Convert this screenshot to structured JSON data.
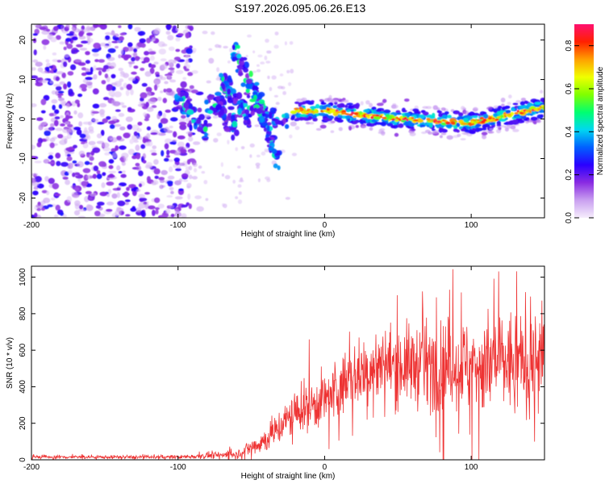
{
  "title": "S197.2026.095.06.26.E13",
  "chart_data": [
    {
      "type": "heatmap",
      "xlabel": "Height of straight line (km)",
      "ylabel": "Frequency (Hz)",
      "xlim": [
        -200,
        150
      ],
      "ylim": [
        -25,
        24
      ],
      "xticks": [
        -200,
        -100,
        0,
        100
      ],
      "xtick_labels": [
        "-200",
        "-100",
        "0",
        "100"
      ],
      "yticks": [
        -20,
        -10,
        0,
        10,
        20
      ],
      "ytick_labels": [
        "-20",
        "-10",
        "0",
        "10",
        "20"
      ],
      "colorbar": {
        "label": "Normalized spectral amplitude",
        "range": [
          0,
          0.9
        ],
        "ticks": [
          0,
          0.2,
          0.4,
          0.6,
          0.8
        ],
        "tick_labels": [
          "0.0",
          "0.2",
          "0.4",
          "0.6",
          "0.8"
        ],
        "colormap": [
          "#f6edfc",
          "#c9a0f0",
          "#8a2be2",
          "#2a00ff",
          "#0060ff",
          "#00d8f0",
          "#00ff70",
          "#80ff00",
          "#f0ff00",
          "#ffa000",
          "#ff2000",
          "#ff1070"
        ]
      },
      "regions": [
        {
          "desc": "noise",
          "x": [
            -200,
            -90
          ],
          "freq_range": [
            -25,
            24
          ],
          "amplitude": "low"
        },
        {
          "desc": "broadband transition",
          "x": [
            -100,
            -25
          ],
          "freq_range": [
            -12,
            15
          ],
          "amplitude": "medium"
        },
        {
          "desc": "narrow carrier trace",
          "x": [
            -25,
            150
          ],
          "center_freq_hz": [
            [
              -20,
              2
            ],
            [
              0,
              2
            ],
            [
              50,
              0
            ],
            [
              100,
              -1
            ],
            [
              150,
              3
            ]
          ],
          "amplitude": "high"
        }
      ]
    },
    {
      "type": "line",
      "xlabel": "Height of straight line (km)",
      "ylabel": "SNR (10 * v/v)",
      "xlim": [
        -200,
        150
      ],
      "ylim": [
        0,
        1060
      ],
      "xticks": [
        -200,
        -100,
        0,
        100
      ],
      "xtick_labels": [
        "-200",
        "-100",
        "0",
        "100"
      ],
      "yticks": [
        0,
        200,
        400,
        600,
        800,
        1000
      ],
      "ytick_labels": [
        "0",
        "200",
        "400",
        "600",
        "800",
        "1000"
      ],
      "color": "#ee3333",
      "trend": {
        "x": [
          -200,
          -100,
          -60,
          -40,
          -20,
          0,
          20,
          40,
          60,
          100,
          150
        ],
        "y": [
          15,
          15,
          30,
          110,
          260,
          330,
          460,
          520,
          520,
          520,
          540
        ]
      },
      "noise_amplitude": {
        "x": [
          -200,
          -100,
          -60,
          -40,
          -20,
          0,
          40,
          100,
          150
        ],
        "y": [
          8,
          8,
          20,
          60,
          100,
          130,
          170,
          220,
          250
        ]
      }
    }
  ]
}
